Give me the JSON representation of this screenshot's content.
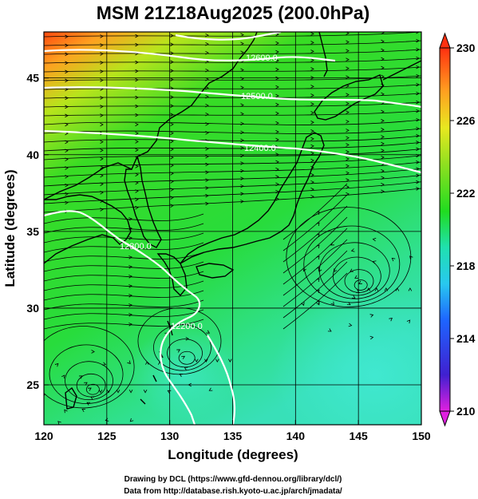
{
  "title": "MSM 21Z18Aug2025 (200.0hPa)",
  "x_axis": {
    "label": "Longitude (degrees)",
    "range": [
      120,
      150
    ],
    "ticks": [
      120,
      125,
      130,
      135,
      140,
      145,
      150
    ],
    "tick_labels": [
      "120",
      "125",
      "130",
      "135",
      "140",
      "145",
      "150"
    ]
  },
  "y_axis": {
    "label": "Latitude  (degrees)",
    "range": [
      22.4,
      48
    ],
    "ticks": [
      25,
      30,
      35,
      40,
      45
    ],
    "tick_labels": [
      "25",
      "30",
      "35",
      "40",
      "45"
    ]
  },
  "colorbar": {
    "min": 210,
    "max": 230,
    "ticks": [
      210,
      214,
      218,
      222,
      226,
      230
    ],
    "tick_labels": [
      "210",
      "214",
      "218",
      "222",
      "226",
      "230"
    ],
    "colors": [
      "#e020e0",
      "#4020d0",
      "#1e64ff",
      "#28c8f0",
      "#20e0b0",
      "#20dc20",
      "#90e020",
      "#e8e820",
      "#ffa020",
      "#ff3010"
    ]
  },
  "contours": [
    {
      "label": "12200.0"
    },
    {
      "label": "12300.0"
    },
    {
      "label": "12400.0"
    },
    {
      "label": "12500.0"
    },
    {
      "label": "12600.0"
    }
  ],
  "colors": {
    "contour": "#ffffff",
    "coastline": "#000000",
    "streamline": "#000000",
    "gridline": "#000000"
  },
  "footer": {
    "line1": "Drawing by DCL (https://www.gfd-dennou.org/library/dcl/)",
    "line2": "Data from http://database.rish.kyoto-u.ac.jp/arch/jmadata/"
  }
}
